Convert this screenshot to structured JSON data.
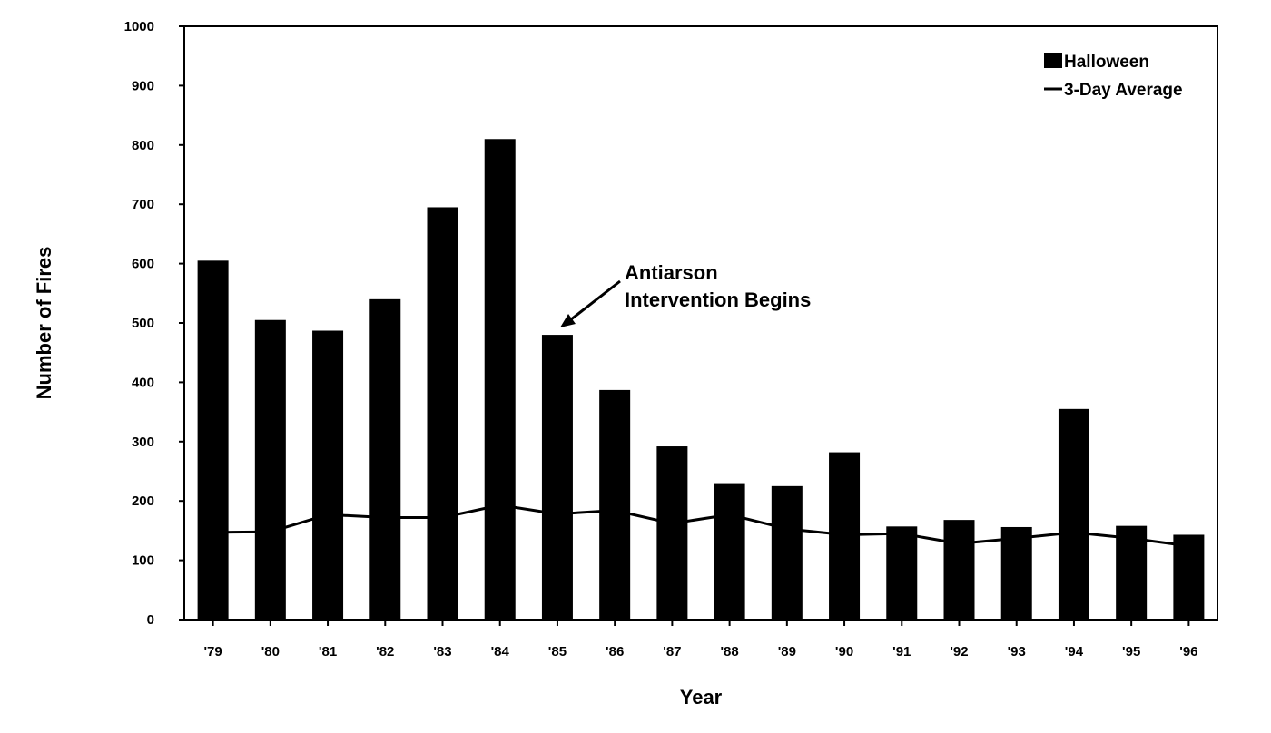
{
  "chart_data": {
    "type": "bar",
    "categories": [
      "'79",
      "'80",
      "'81",
      "'82",
      "'83",
      "'84",
      "'85",
      "'86",
      "'87",
      "'88",
      "'89",
      "'90",
      "'91",
      "'92",
      "'93",
      "'94",
      "'95",
      "'96"
    ],
    "series": [
      {
        "name": "Halloween",
        "type": "bar",
        "values": [
          605,
          505,
          487,
          540,
          695,
          810,
          480,
          387,
          292,
          230,
          225,
          282,
          157,
          168,
          156,
          355,
          158,
          143
        ],
        "color": "#000000"
      },
      {
        "name": "3-Day Average",
        "type": "line",
        "values": [
          147,
          148,
          177,
          172,
          172,
          193,
          178,
          184,
          162,
          177,
          153,
          143,
          145,
          128,
          137,
          147,
          137,
          124
        ],
        "color": "#000000"
      }
    ],
    "xlabel": "Year",
    "ylabel": "Number of Fires",
    "ylim": [
      0,
      1000
    ],
    "yticks": [
      0,
      100,
      200,
      300,
      400,
      500,
      600,
      700,
      800,
      900,
      1000
    ],
    "grid": false,
    "legend_position": "top-right",
    "annotation": {
      "lines": [
        "Antiarson",
        "Intervention Begins"
      ],
      "target_category": "'85"
    }
  }
}
